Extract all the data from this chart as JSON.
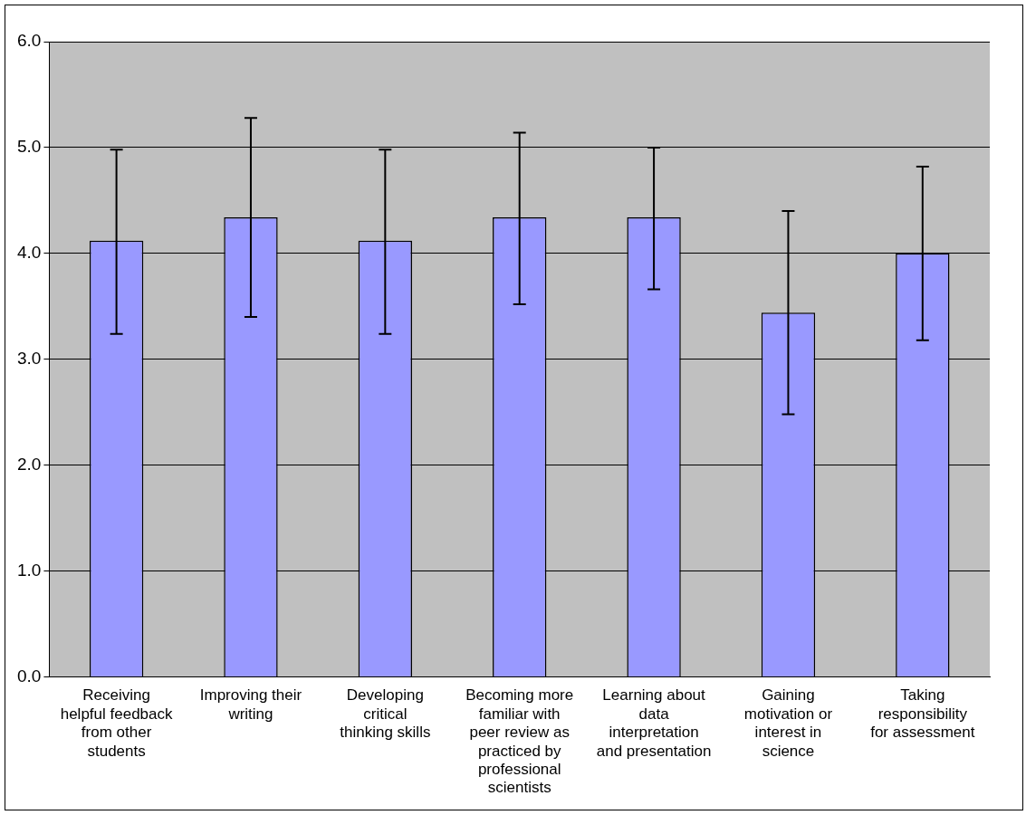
{
  "chart_data": {
    "type": "bar",
    "categories": [
      "Receiving helpful feedback from other students",
      "Improving their writing",
      "Developing critical thinking skills",
      "Becoming more familiar with peer review as practiced by professional scientists",
      "Learning about data interpretation and presentation",
      "Gaining motivation or interest in science",
      "Taking responsibility for assessment"
    ],
    "values": [
      4.12,
      4.34,
      4.12,
      4.34,
      4.34,
      3.44,
      4.0
    ],
    "errors": [
      [
        3.24,
        4.98
      ],
      [
        3.4,
        5.28
      ],
      [
        3.24,
        4.98
      ],
      [
        3.52,
        5.14
      ],
      [
        3.66,
        5.0
      ],
      [
        2.48,
        4.4
      ],
      [
        3.18,
        4.82
      ]
    ],
    "color": "#9999ff",
    "ylim": [
      0,
      6
    ],
    "yticks": [
      {
        "value": 0,
        "label": "0.0"
      },
      {
        "value": 1,
        "label": "1.0"
      },
      {
        "value": 2,
        "label": "2.0"
      },
      {
        "value": 3,
        "label": "3.0"
      },
      {
        "value": 4,
        "label": "4.0"
      },
      {
        "value": 5,
        "label": "5.0"
      },
      {
        "value": 6,
        "label": "6.0"
      }
    ],
    "grid": "y",
    "legend": false
  }
}
